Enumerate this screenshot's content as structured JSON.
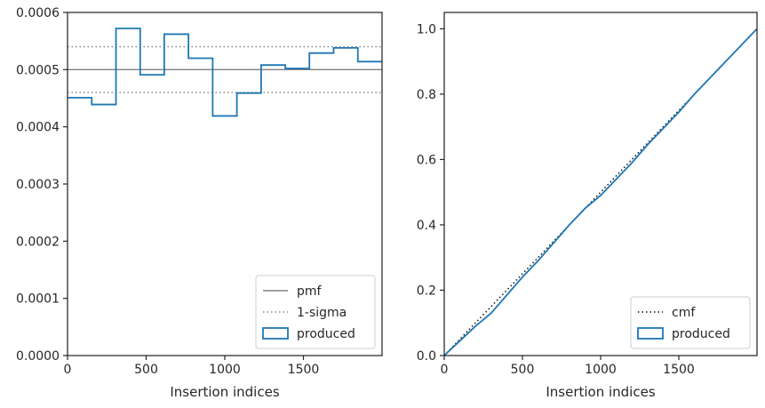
{
  "chart_data": [
    {
      "type": "line",
      "xlabel": "Insertion indices",
      "ylabel": "",
      "xlim": [
        0,
        2000
      ],
      "ylim": [
        0,
        0.0006
      ],
      "xticks": [
        0,
        500,
        1000,
        1500
      ],
      "xtick_labels": [
        "0",
        "500",
        "1000",
        "1500"
      ],
      "yticks": [
        0,
        0.0001,
        0.0002,
        0.0003,
        0.0004,
        0.0005,
        0.0006
      ],
      "ytick_labels": [
        "0.0000",
        "0.0001",
        "0.0002",
        "0.0003",
        "0.0004",
        "0.0005",
        "0.0006"
      ],
      "grid": false,
      "legend_position": "lower-right",
      "hlines": [
        {
          "name": "pmf",
          "y": 0.0005,
          "style": "solid",
          "color": "#808080"
        },
        {
          "name": "1-sigma",
          "y": 0.00054,
          "style": "dotted",
          "color": "#808080"
        },
        {
          "name": "1-sigma",
          "y": 0.00046,
          "style": "dotted",
          "color": "#808080"
        }
      ],
      "series": [
        {
          "name": "produced",
          "color": "#1f77b4",
          "drawstyle": "steps",
          "bin_edges": [
            0,
            154,
            308,
            462,
            615,
            769,
            923,
            1077,
            1231,
            1385,
            1538,
            1692,
            1846,
            2000
          ],
          "values": [
            0.000451,
            0.000439,
            0.000572,
            0.000491,
            0.000562,
            0.00052,
            0.000419,
            0.000459,
            0.000508,
            0.000502,
            0.000529,
            0.000538,
            0.000514
          ]
        }
      ],
      "legend": [
        {
          "label": "pmf",
          "style": "solid",
          "color": "#808080"
        },
        {
          "label": "1-sigma",
          "style": "dotted",
          "color": "#808080"
        },
        {
          "label": "produced",
          "style": "patch",
          "color": "#1f77b4"
        }
      ]
    },
    {
      "type": "line",
      "xlabel": "Insertion indices",
      "ylabel": "",
      "xlim": [
        0,
        2000
      ],
      "ylim": [
        0,
        1.05
      ],
      "xticks": [
        0,
        500,
        1000,
        1500
      ],
      "xtick_labels": [
        "0",
        "500",
        "1000",
        "1500"
      ],
      "yticks": [
        0,
        0.2,
        0.4,
        0.6,
        0.8,
        1.0
      ],
      "ytick_labels": [
        "0.0",
        "0.2",
        "0.4",
        "0.6",
        "0.8",
        "1.0"
      ],
      "grid": false,
      "legend_position": "lower-right",
      "series": [
        {
          "name": "cmf",
          "style": "dotted",
          "color": "#111111",
          "x": [
            0,
            2000
          ],
          "y": [
            0,
            1.0
          ]
        },
        {
          "name": "produced",
          "style": "solid",
          "color": "#1f77b4",
          "x": [
            0,
            100,
            200,
            300,
            400,
            500,
            600,
            700,
            800,
            900,
            1000,
            1100,
            1200,
            1300,
            1400,
            1500,
            1600,
            1700,
            1800,
            1900,
            2000
          ],
          "y": [
            0,
            0.045,
            0.09,
            0.13,
            0.185,
            0.24,
            0.29,
            0.345,
            0.4,
            0.45,
            0.49,
            0.54,
            0.59,
            0.645,
            0.695,
            0.745,
            0.8,
            0.85,
            0.9,
            0.95,
            1.0
          ]
        }
      ],
      "legend": [
        {
          "label": "cmf",
          "style": "dotted",
          "color": "#111111"
        },
        {
          "label": "produced",
          "style": "patch",
          "color": "#1f77b4"
        }
      ]
    }
  ]
}
